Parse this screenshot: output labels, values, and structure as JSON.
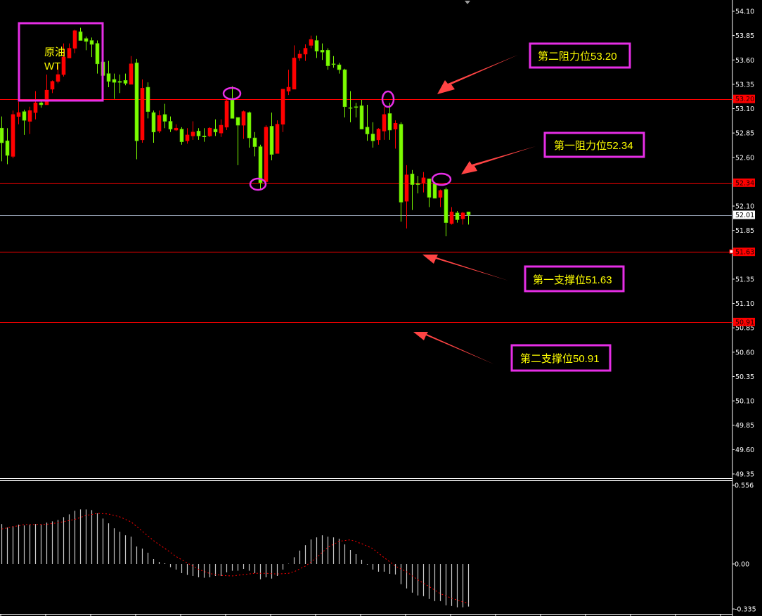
{
  "chart_data": {
    "type": "candlestick",
    "symbol_label": [
      "原油",
      "WT"
    ],
    "colors": {
      "background": "#000000",
      "up_candle": "#ff0000",
      "down_candle": "#7cfc00",
      "level_line": "#ff0000",
      "bid_line": "#8c96a8",
      "annotation_box": "#e62ee6",
      "annotation_text": "#ffff00",
      "arrow": "#ff4444",
      "macd_histogram": "#c8c8c8",
      "macd_signal": "#ff0000",
      "axis_text": "#ffffff"
    },
    "price_axis": {
      "range": [
        49.35,
        54.1
      ],
      "tick_labels": [
        "54.10",
        "53.85",
        "53.60",
        "53.35",
        "53.10",
        "52.85",
        "52.60",
        "52.10",
        "51.85",
        "51.35",
        "51.10",
        "50.85",
        "50.60",
        "50.35",
        "50.10",
        "49.85",
        "49.60",
        "49.35"
      ]
    },
    "current_price": "52.01",
    "levels": [
      {
        "price": "53.20",
        "label": "第二阻力位53.20"
      },
      {
        "price": "52.34",
        "label": "第一阻力位52.34"
      },
      {
        "price": "51.63",
        "label": "第一支撑位51.63"
      },
      {
        "price": "50.91",
        "label": "第二支撑位50.91"
      }
    ],
    "ohlc_fields": [
      "open",
      "high",
      "low",
      "close"
    ],
    "candles": [
      [
        52.9,
        53.02,
        52.56,
        52.75
      ],
      [
        52.77,
        52.9,
        52.53,
        52.62
      ],
      [
        52.61,
        53.08,
        52.59,
        53.04
      ],
      [
        53.02,
        53.17,
        52.94,
        53.06
      ],
      [
        53.07,
        53.09,
        52.83,
        52.98
      ],
      [
        52.97,
        53.12,
        52.84,
        53.08
      ],
      [
        53.06,
        53.28,
        52.99,
        53.16
      ],
      [
        53.16,
        53.19,
        53.11,
        53.14
      ],
      [
        53.14,
        53.45,
        53.14,
        53.29
      ],
      [
        53.3,
        53.39,
        53.26,
        53.38
      ],
      [
        53.38,
        53.55,
        53.36,
        53.45
      ],
      [
        53.45,
        53.77,
        53.43,
        53.63
      ],
      [
        53.62,
        53.77,
        53.62,
        53.72
      ],
      [
        53.72,
        53.91,
        53.67,
        53.9
      ],
      [
        53.89,
        53.93,
        53.8,
        53.8
      ],
      [
        53.82,
        53.84,
        53.7,
        53.79
      ],
      [
        53.8,
        53.83,
        53.63,
        53.76
      ],
      [
        53.77,
        53.8,
        53.46,
        53.56
      ],
      [
        53.58,
        53.6,
        53.42,
        53.44
      ],
      [
        53.46,
        53.59,
        53.32,
        53.38
      ],
      [
        53.4,
        53.46,
        53.2,
        53.37
      ],
      [
        53.38,
        53.45,
        53.26,
        53.37
      ],
      [
        53.39,
        53.46,
        53.34,
        53.36
      ],
      [
        53.35,
        53.64,
        53.35,
        53.56
      ],
      [
        53.57,
        53.61,
        52.58,
        52.77
      ],
      [
        52.78,
        53.4,
        52.75,
        53.31
      ],
      [
        53.32,
        53.37,
        53.0,
        53.07
      ],
      [
        53.06,
        53.08,
        52.75,
        52.86
      ],
      [
        52.87,
        53.08,
        52.85,
        53.03
      ],
      [
        53.04,
        53.15,
        52.9,
        52.97
      ],
      [
        52.97,
        53.02,
        52.86,
        52.89
      ],
      [
        52.88,
        52.94,
        52.87,
        52.9
      ],
      [
        52.89,
        52.91,
        52.73,
        52.76
      ],
      [
        52.77,
        52.9,
        52.74,
        52.83
      ],
      [
        52.82,
        52.97,
        52.78,
        52.86
      ],
      [
        52.87,
        52.9,
        52.78,
        52.82
      ],
      [
        52.82,
        52.9,
        52.76,
        52.81
      ],
      [
        52.82,
        52.91,
        52.81,
        52.9
      ],
      [
        52.89,
        52.99,
        52.82,
        52.86
      ],
      [
        52.85,
        52.99,
        52.81,
        52.93
      ],
      [
        52.91,
        53.2,
        52.88,
        53.18
      ],
      [
        53.19,
        53.33,
        53.0,
        53.0
      ],
      [
        53.01,
        53.01,
        52.52,
        52.93
      ],
      [
        52.93,
        53.08,
        52.79,
        53.07
      ],
      [
        53.06,
        53.07,
        52.7,
        52.8
      ],
      [
        52.8,
        52.86,
        52.61,
        52.71
      ],
      [
        52.71,
        52.73,
        52.27,
        52.34
      ],
      [
        52.35,
        52.93,
        52.35,
        52.91
      ],
      [
        52.92,
        53.06,
        52.57,
        52.63
      ],
      [
        52.64,
        52.98,
        52.64,
        52.94
      ],
      [
        52.94,
        53.3,
        52.86,
        53.3
      ],
      [
        53.28,
        53.5,
        53.24,
        53.32
      ],
      [
        53.3,
        53.75,
        53.3,
        53.62
      ],
      [
        53.62,
        53.7,
        53.59,
        53.66
      ],
      [
        53.66,
        53.76,
        53.59,
        53.72
      ],
      [
        53.75,
        53.85,
        53.72,
        53.81
      ],
      [
        53.8,
        53.85,
        53.62,
        53.69
      ],
      [
        53.7,
        53.77,
        53.6,
        53.68
      ],
      [
        53.7,
        53.72,
        53.5,
        53.54
      ],
      [
        53.56,
        53.64,
        53.52,
        53.56
      ],
      [
        53.55,
        53.57,
        53.46,
        53.5
      ],
      [
        53.5,
        53.51,
        53.01,
        53.12
      ],
      [
        53.11,
        53.28,
        52.96,
        53.11
      ],
      [
        53.12,
        53.16,
        53.01,
        53.12
      ],
      [
        53.13,
        53.19,
        52.89,
        52.89
      ],
      [
        52.91,
        53.14,
        52.77,
        52.84
      ],
      [
        52.84,
        52.96,
        52.7,
        52.77
      ],
      [
        52.78,
        52.9,
        52.73,
        52.89
      ],
      [
        52.87,
        53.12,
        52.78,
        53.04
      ],
      [
        53.05,
        53.16,
        52.78,
        52.88
      ],
      [
        52.89,
        52.98,
        52.69,
        52.95
      ],
      [
        52.94,
        52.96,
        51.94,
        52.14
      ],
      [
        52.15,
        52.52,
        51.87,
        52.42
      ],
      [
        52.43,
        52.47,
        52.06,
        52.32
      ],
      [
        52.33,
        52.41,
        52.23,
        52.32
      ],
      [
        52.34,
        52.45,
        52.24,
        52.39
      ],
      [
        52.38,
        52.38,
        52.09,
        52.19
      ],
      [
        52.33,
        52.34,
        52.18,
        52.18
      ],
      [
        52.19,
        52.27,
        52.09,
        52.26
      ],
      [
        52.27,
        52.29,
        51.79,
        51.93
      ],
      [
        51.92,
        52.09,
        51.91,
        52.04
      ],
      [
        52.03,
        52.05,
        51.93,
        51.96
      ],
      [
        51.97,
        52.04,
        51.91,
        52.03
      ],
      [
        52.04,
        52.04,
        51.91,
        52.01
      ]
    ],
    "highlighted_candles": [
      40,
      69,
      46,
      78
    ],
    "macd": {
      "tick_labels": [
        "0.556",
        "0.00",
        "-0.335"
      ],
      "range": [
        -0.335,
        0.556
      ],
      "histogram": [
        0.284,
        0.259,
        0.269,
        0.279,
        0.274,
        0.28,
        0.284,
        0.28,
        0.294,
        0.303,
        0.313,
        0.333,
        0.353,
        0.378,
        0.388,
        0.388,
        0.383,
        0.36,
        0.323,
        0.289,
        0.254,
        0.229,
        0.204,
        0.194,
        0.124,
        0.109,
        0.08,
        0.035,
        0.015,
        0.005,
        -0.023,
        -0.04,
        -0.065,
        -0.078,
        -0.085,
        -0.095,
        -0.098,
        -0.095,
        -0.085,
        -0.085,
        -0.06,
        -0.048,
        -0.048,
        -0.035,
        -0.048,
        -0.065,
        -0.109,
        -0.095,
        -0.104,
        -0.085,
        -0.04,
        0.002,
        0.048,
        0.095,
        0.134,
        0.174,
        0.189,
        0.204,
        0.194,
        0.189,
        0.179,
        0.139,
        0.1,
        0.07,
        0.03,
        -0.005,
        -0.04,
        -0.055,
        -0.055,
        -0.07,
        -0.075,
        -0.144,
        -0.174,
        -0.204,
        -0.224,
        -0.229,
        -0.249,
        -0.264,
        -0.264,
        -0.294,
        -0.299,
        -0.308,
        -0.308,
        -0.303
      ],
      "signal": [
        0.249,
        0.257,
        0.265,
        0.272,
        0.28,
        0.28,
        0.281,
        0.281,
        0.282,
        0.288,
        0.293,
        0.301,
        0.309,
        0.317,
        0.331,
        0.345,
        0.352,
        0.36,
        0.358,
        0.355,
        0.345,
        0.335,
        0.317,
        0.299,
        0.266,
        0.232,
        0.199,
        0.166,
        0.138,
        0.11,
        0.082,
        0.053,
        0.03,
        0.007,
        -0.016,
        -0.038,
        -0.053,
        -0.068,
        -0.075,
        -0.081,
        -0.083,
        -0.085,
        -0.08,
        -0.076,
        -0.071,
        -0.066,
        -0.066,
        -0.066,
        -0.069,
        -0.071,
        -0.069,
        -0.066,
        -0.055,
        -0.035,
        -0.015,
        0.015,
        0.045,
        0.082,
        0.118,
        0.14,
        0.161,
        0.167,
        0.172,
        0.158,
        0.144,
        0.127,
        0.109,
        0.077,
        0.045,
        0.015,
        -0.015,
        -0.036,
        -0.056,
        -0.085,
        -0.113,
        -0.137,
        -0.161,
        -0.186,
        -0.211,
        -0.228,
        -0.244,
        -0.257,
        -0.27,
        -0.279
      ]
    }
  }
}
